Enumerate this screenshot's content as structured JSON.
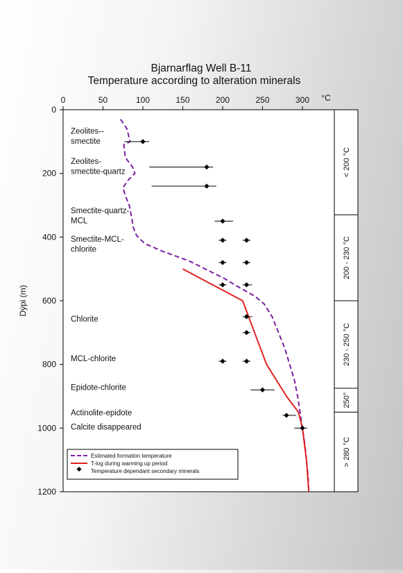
{
  "chart_data": {
    "type": "line",
    "title": "Bjarnarflag Well B-11",
    "subtitle": "Temperature according to alteration minerals",
    "xlabel": "°C",
    "ylabel": "Dýpi (m)",
    "x_axis_position": "top",
    "y_axis_inverted": true,
    "xlim": [
      0,
      340
    ],
    "ylim": [
      0,
      1200
    ],
    "x_ticks": [
      "0",
      "50",
      "100",
      "150",
      "200",
      "250",
      "300"
    ],
    "x_tick_values": [
      0,
      50,
      100,
      150,
      200,
      250,
      300
    ],
    "y_ticks": [
      "0",
      "200",
      "400",
      "600",
      "800",
      "1000",
      "1200"
    ],
    "y_tick_values": [
      0,
      200,
      400,
      600,
      800,
      1000,
      1200
    ],
    "grid": false,
    "legend_position": "bottom-left",
    "legend": [
      {
        "label": "Estimated formation temperature",
        "style": "dashed",
        "color": "#7b1fa2"
      },
      {
        "label": "T-log during warming up period",
        "style": "solid",
        "color": "#e02020"
      },
      {
        "label": "Temperature dependant secondary minerals",
        "style": "marker",
        "color": "#000000"
      }
    ],
    "series": [
      {
        "name": "Estimated formation temperature",
        "color": "#7b1fa2",
        "style": "dashed",
        "points": [
          [
            72,
            30
          ],
          [
            80,
            60
          ],
          [
            84,
            100
          ],
          [
            76,
            110
          ],
          [
            78,
            150
          ],
          [
            87,
            180
          ],
          [
            90,
            200
          ],
          [
            82,
            220
          ],
          [
            75,
            245
          ],
          [
            78,
            270
          ],
          [
            83,
            300
          ],
          [
            86,
            340
          ],
          [
            88,
            370
          ],
          [
            92,
            395
          ],
          [
            102,
            420
          ],
          [
            125,
            445
          ],
          [
            158,
            475
          ],
          [
            182,
            505
          ],
          [
            202,
            530
          ],
          [
            222,
            560
          ],
          [
            240,
            585
          ],
          [
            252,
            610
          ],
          [
            262,
            650
          ],
          [
            270,
            700
          ],
          [
            278,
            750
          ],
          [
            284,
            800
          ],
          [
            290,
            850
          ],
          [
            294,
            900
          ],
          [
            297,
            950
          ],
          [
            300,
            1000
          ],
          [
            303,
            1050
          ],
          [
            305,
            1100
          ],
          [
            307,
            1150
          ],
          [
            308,
            1200
          ]
        ]
      },
      {
        "name": "T-log during warming up period",
        "color": "#e02020",
        "style": "solid",
        "points": [
          [
            150,
            500
          ],
          [
            225,
            600
          ],
          [
            240,
            700
          ],
          [
            255,
            800
          ],
          [
            280,
            900
          ],
          [
            295,
            950
          ],
          [
            300,
            1000
          ],
          [
            305,
            1100
          ],
          [
            308,
            1200
          ]
        ]
      }
    ],
    "minerals": [
      {
        "x": 100,
        "y": 100,
        "lo": 77,
        "hi": 108
      },
      {
        "x": 180,
        "y": 180,
        "lo": 108,
        "hi": 188
      },
      {
        "x": 180,
        "y": 240,
        "lo": 111,
        "hi": 192
      },
      {
        "x": 200,
        "y": 350,
        "lo": 190,
        "hi": 213
      },
      {
        "x": 200,
        "y": 410,
        "lo": 195,
        "hi": 205
      },
      {
        "x": 230,
        "y": 410,
        "lo": 225,
        "hi": 235
      },
      {
        "x": 200,
        "y": 480,
        "lo": 195,
        "hi": 205
      },
      {
        "x": 230,
        "y": 480,
        "lo": 225,
        "hi": 235
      },
      {
        "x": 200,
        "y": 550,
        "lo": 195,
        "hi": 205
      },
      {
        "x": 230,
        "y": 550,
        "lo": 225,
        "hi": 237
      },
      {
        "x": 230,
        "y": 650,
        "lo": 225,
        "hi": 237
      },
      {
        "x": 230,
        "y": 700,
        "lo": 225,
        "hi": 235
      },
      {
        "x": 200,
        "y": 790,
        "lo": 195,
        "hi": 205
      },
      {
        "x": 230,
        "y": 790,
        "lo": 225,
        "hi": 235
      },
      {
        "x": 250,
        "y": 880,
        "lo": 235,
        "hi": 265
      },
      {
        "x": 280,
        "y": 960,
        "lo": 275,
        "hi": 292
      },
      {
        "x": 300,
        "y": 1000,
        "lo": 290,
        "hi": 306
      }
    ],
    "mineral_labels": [
      {
        "lines": [
          "Zeolites--",
          "smectite"
        ],
        "y": 75
      },
      {
        "lines": [
          "Zeolites-",
          "smectite-quartz"
        ],
        "y": 170
      },
      {
        "lines": [
          "Smectite-quartz-",
          "MCL"
        ],
        "y": 325
      },
      {
        "lines": [
          "Smectite-MCL-",
          "chlorite"
        ],
        "y": 415
      },
      {
        "lines": [
          "Chlorite"
        ],
        "y": 665
      },
      {
        "lines": [
          "MCL-chlorite"
        ],
        "y": 790
      },
      {
        "lines": [
          "Epidote-chlorite"
        ],
        "y": 880
      },
      {
        "lines": [
          "Actinolite-epidote"
        ],
        "y": 960
      },
      {
        "lines": [
          "Calcite disappeared"
        ],
        "y": 1005
      }
    ],
    "zones": [
      {
        "label": "< 200 °C",
        "y0": 0,
        "y1": 330
      },
      {
        "label": "200 - 230 °C",
        "y0": 330,
        "y1": 600
      },
      {
        "label": "230 - 250 °C",
        "y0": 600,
        "y1": 875
      },
      {
        "label": "250°",
        "y0": 875,
        "y1": 950
      },
      {
        "label": "> 280 °C",
        "y0": 950,
        "y1": 1200
      }
    ]
  }
}
